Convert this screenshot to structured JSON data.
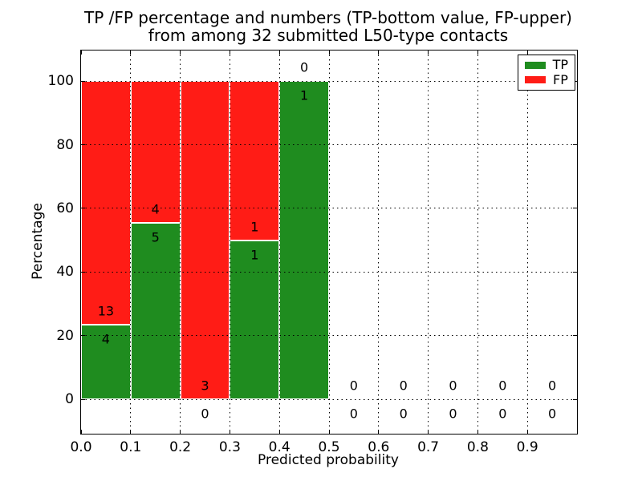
{
  "chart_data": {
    "type": "bar",
    "stacked": true,
    "title_line1": "TP /FP percentage and numbers (TP-bottom value, FP-upper)",
    "title_line2": "from among 32 submitted L50-type contacts",
    "xlabel": "Predicted probability",
    "ylabel": "Percentage",
    "bin_edges": [
      0.0,
      0.1,
      0.2,
      0.3,
      0.4,
      0.5,
      0.6,
      0.7,
      0.8,
      0.9,
      1.0
    ],
    "series": [
      {
        "name": "TP",
        "color": "#1f8c1f",
        "counts": [
          4,
          5,
          0,
          1,
          1,
          0,
          0,
          0,
          0,
          0
        ]
      },
      {
        "name": "FP",
        "color": "#ff1c16",
        "counts": [
          13,
          4,
          3,
          1,
          0,
          0,
          0,
          0,
          0,
          0
        ]
      }
    ],
    "tp_percent": [
      23.5,
      55.6,
      0.0,
      50.0,
      100.0,
      0.0,
      0.0,
      0.0,
      0.0,
      0.0
    ],
    "xticks": [
      0.0,
      0.1,
      0.2,
      0.3,
      0.4,
      0.5,
      0.6,
      0.7,
      0.8,
      0.9
    ],
    "xtick_labels": [
      "0.0",
      "0.1",
      "0.2",
      "0.3",
      "0.4",
      "0.5",
      "0.6",
      "0.7",
      "0.8",
      "0.9"
    ],
    "yticks": [
      0,
      20,
      40,
      60,
      80,
      100
    ],
    "ytick_labels": [
      "0",
      "20",
      "40",
      "60",
      "80",
      "100"
    ],
    "xlim": [
      0.0,
      1.0
    ],
    "ylim": [
      -10.8,
      109.6
    ],
    "grid": "dotted",
    "legend": {
      "position": "upper right",
      "entries": [
        "TP",
        "FP"
      ]
    }
  }
}
